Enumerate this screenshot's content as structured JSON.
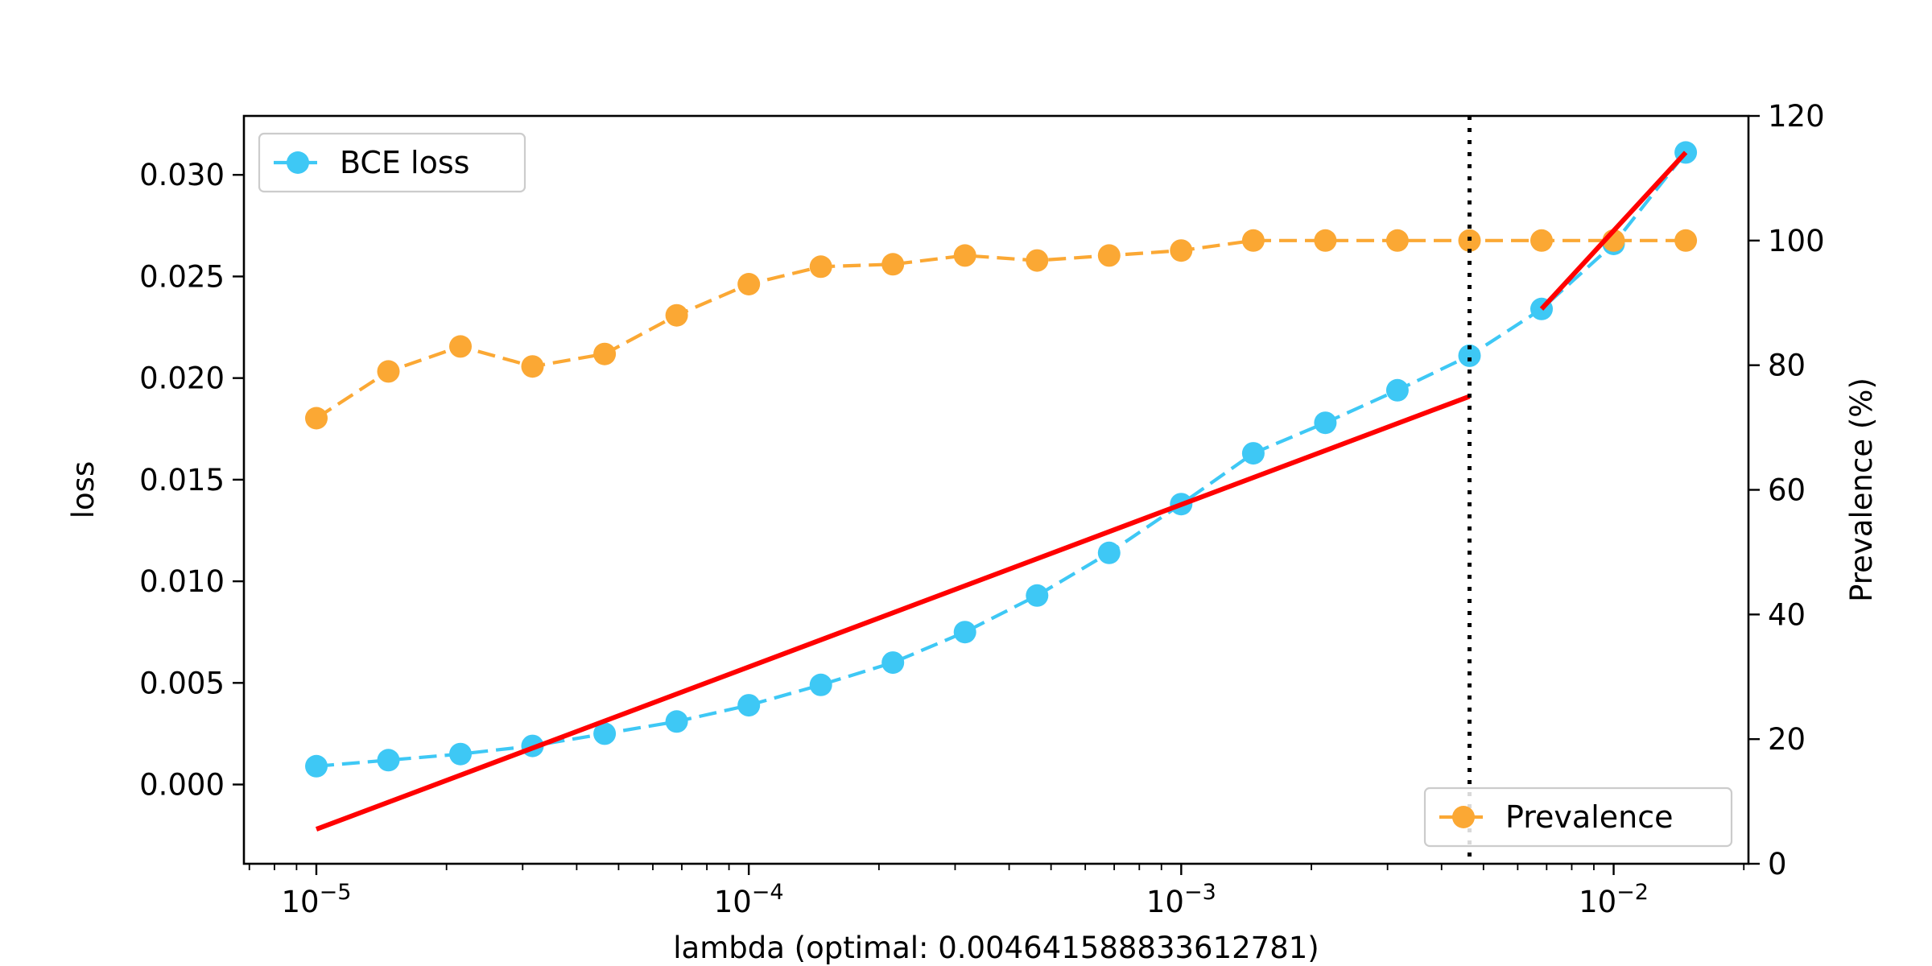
{
  "chart_data": {
    "type": "line",
    "title": "",
    "xlabel": "lambda (optimal: 0.004641588833612781)",
    "ylabel_left": "loss",
    "ylabel_right": "Prevalence (%)",
    "xscale": "log",
    "xlim": [
      6.8e-06,
      0.0205
    ],
    "ylim_left": [
      -0.0039,
      0.0329
    ],
    "ylim_right": [
      0,
      120
    ],
    "x_ticks": [
      {
        "value": 1e-05,
        "base": "10",
        "exp": "−5"
      },
      {
        "value": 0.0001,
        "base": "10",
        "exp": "−4"
      },
      {
        "value": 0.001,
        "base": "10",
        "exp": "−3"
      },
      {
        "value": 0.01,
        "base": "10",
        "exp": "−2"
      }
    ],
    "y_left_ticks": [
      {
        "value": 0.0,
        "label": "0.000"
      },
      {
        "value": 0.005,
        "label": "0.005"
      },
      {
        "value": 0.01,
        "label": "0.010"
      },
      {
        "value": 0.015,
        "label": "0.015"
      },
      {
        "value": 0.02,
        "label": "0.020"
      },
      {
        "value": 0.025,
        "label": "0.025"
      },
      {
        "value": 0.03,
        "label": "0.030"
      }
    ],
    "y_right_ticks": [
      {
        "value": 0,
        "label": "0"
      },
      {
        "value": 20,
        "label": "20"
      },
      {
        "value": 40,
        "label": "40"
      },
      {
        "value": 60,
        "label": "60"
      },
      {
        "value": 80,
        "label": "80"
      },
      {
        "value": 100,
        "label": "100"
      },
      {
        "value": 120,
        "label": "120"
      }
    ],
    "x": [
      1e-05,
      1.468e-05,
      2.154e-05,
      3.162e-05,
      4.642e-05,
      6.813e-05,
      0.0001,
      0.0001468,
      0.0002154,
      0.0003162,
      0.0004642,
      0.0006813,
      0.001,
      0.001468,
      0.002154,
      0.003162,
      0.004642,
      0.006813,
      0.01,
      0.01468
    ],
    "series": [
      {
        "name": "BCE loss",
        "axis": "left",
        "color": "#3ec8f5",
        "linestyle": "dashed",
        "marker": "circle",
        "values": [
          0.0009,
          0.0012,
          0.0015,
          0.0019,
          0.0025,
          0.0031,
          0.0039,
          0.0049,
          0.006,
          0.0075,
          0.0093,
          0.0114,
          0.0138,
          0.0163,
          0.0178,
          0.0194,
          0.0211,
          0.0234,
          0.0266,
          0.0311
        ]
      },
      {
        "name": "Prevalence",
        "axis": "right",
        "color": "#fba834",
        "linestyle": "dashed",
        "marker": "circle",
        "values": [
          71.5,
          79,
          83,
          79.8,
          81.8,
          88,
          93,
          95.8,
          96.2,
          97.6,
          96.8,
          97.6,
          98.4,
          100,
          100,
          100,
          100,
          100,
          100,
          100
        ]
      }
    ],
    "fit_lines": [
      {
        "color": "#ff0000",
        "axis": "left",
        "x": [
          1e-05,
          0.004642
        ],
        "y": [
          -0.0022,
          0.0191
        ]
      },
      {
        "color": "#ff0000",
        "axis": "left",
        "x": [
          0.006813,
          0.01468
        ],
        "y": [
          0.0234,
          0.0311
        ]
      }
    ],
    "optimal_line": {
      "x": 0.004641588833612781,
      "color": "#000000",
      "linestyle": "dotted"
    },
    "legends": [
      {
        "series": "BCE loss",
        "placement": "upper-left"
      },
      {
        "series": "Prevalence",
        "placement": "lower-right"
      }
    ],
    "grid": false
  }
}
